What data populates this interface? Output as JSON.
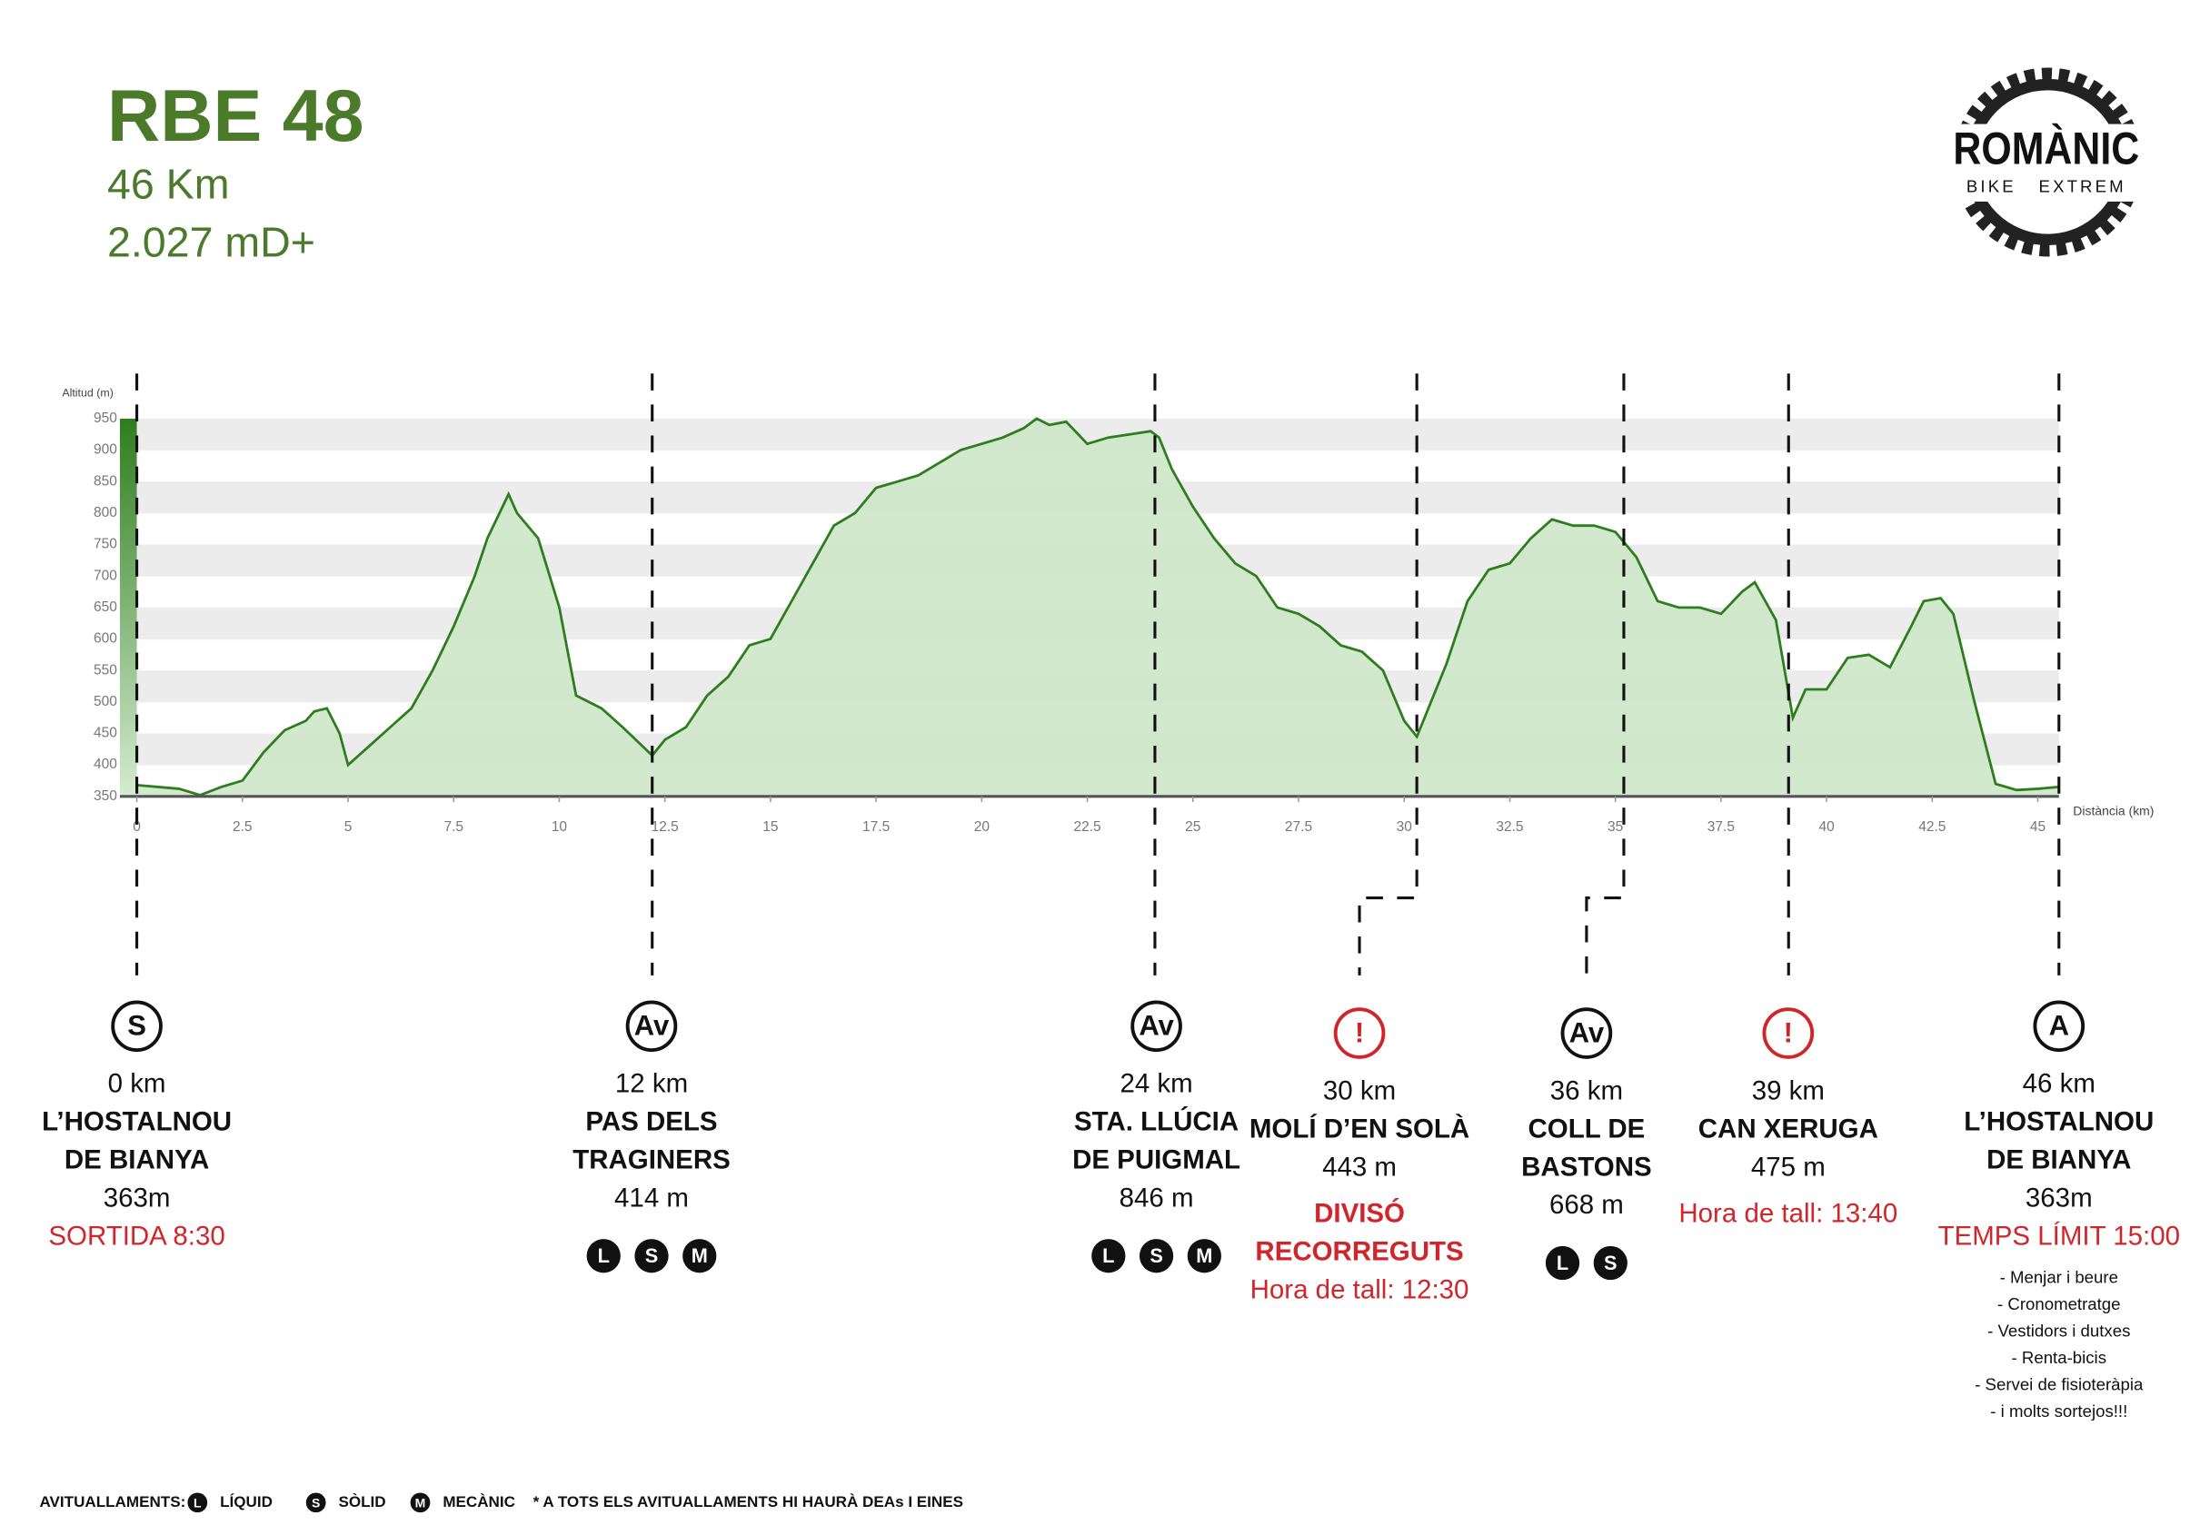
{
  "header": {
    "title": "RBE 48",
    "distance": "46 Km",
    "elevation": "2.027 mD+"
  },
  "logo": {
    "name": "ROMÀNIC",
    "subtitle": "BIKE   EXTREM"
  },
  "chart_data": {
    "type": "area",
    "y_label": "Altitud (m)",
    "x_label": "Distància (km)",
    "color": "#2e7d1e",
    "fill": "#cde7c9",
    "x": [
      0,
      1,
      1.5,
      2,
      2.5,
      3,
      3.5,
      4,
      4.2,
      4.5,
      4.8,
      5,
      5.5,
      6,
      6.5,
      7,
      7.5,
      8,
      8.3,
      8.8,
      9,
      9.5,
      10,
      10.4,
      11,
      11.5,
      12.2,
      12.5,
      13,
      13.5,
      14,
      14.5,
      15,
      15.5,
      16,
      16.5,
      17,
      17.5,
      18,
      18.5,
      19,
      19.5,
      20,
      20.5,
      21,
      21.3,
      21.6,
      22,
      22.5,
      23,
      23.5,
      24,
      24.2,
      24.5,
      25,
      25.5,
      26,
      26.5,
      27,
      27.5,
      28,
      28.5,
      29,
      29.5,
      30,
      30.3,
      31,
      31.5,
      32,
      32.5,
      33,
      33.5,
      34,
      34.5,
      35,
      35.5,
      36,
      36.5,
      37,
      37.5,
      38,
      38.3,
      38.8,
      39.2,
      39.5,
      40,
      40.5,
      41,
      41.5,
      42,
      42.3,
      42.7,
      43,
      43.5,
      44,
      44.5,
      45,
      45.5
    ],
    "values": [
      368,
      362,
      352,
      365,
      375,
      420,
      455,
      470,
      485,
      490,
      450,
      400,
      430,
      460,
      490,
      550,
      620,
      700,
      760,
      830,
      800,
      760,
      650,
      510,
      490,
      460,
      415,
      440,
      460,
      510,
      540,
      590,
      600,
      660,
      720,
      780,
      800,
      840,
      850,
      860,
      880,
      900,
      910,
      920,
      935,
      950,
      940,
      945,
      910,
      920,
      925,
      930,
      920,
      870,
      810,
      760,
      720,
      700,
      650,
      640,
      620,
      590,
      580,
      550,
      470,
      445,
      560,
      660,
      710,
      720,
      760,
      790,
      780,
      780,
      770,
      730,
      660,
      650,
      650,
      640,
      675,
      690,
      630,
      475,
      520,
      520,
      570,
      575,
      555,
      620,
      660,
      665,
      640,
      500,
      370,
      360,
      362,
      365
    ],
    "xlim": [
      0,
      45.5
    ],
    "ylim": [
      350,
      950
    ],
    "xticks": [
      0,
      2.5,
      5,
      7.5,
      10,
      12.5,
      15,
      17.5,
      20,
      22.5,
      25,
      27.5,
      30,
      32.5,
      35,
      37.5,
      40,
      42.5,
      45
    ],
    "yticks": [
      350,
      400,
      450,
      500,
      550,
      600,
      650,
      700,
      750,
      800,
      850,
      900,
      950
    ],
    "markers": [
      0,
      12.2,
      24.1,
      30.3,
      35.2,
      39.1,
      45.5
    ],
    "grid": true
  },
  "checkpoints": [
    {
      "icon": "S",
      "km": "0 km",
      "name": [
        "L’HOSTALNOU",
        "DE BIANYA"
      ],
      "altitude": "363m",
      "note": [
        "SORTIDA 8:30"
      ]
    },
    {
      "icon": "Av",
      "km": "12 km",
      "name": [
        "PAS DELS",
        "TRAGINERS"
      ],
      "altitude": "414 m",
      "services": [
        "L",
        "S",
        "M"
      ]
    },
    {
      "icon": "Av",
      "km": "24 km",
      "name": [
        "STA. LLÚCIA",
        "DE PUIGMAL"
      ],
      "altitude": "846 m",
      "services": [
        "L",
        "S",
        "M"
      ]
    },
    {
      "icon": "!",
      "icon_color": "#d0262b",
      "km": "30 km",
      "name": [
        "MOLÍ D’EN SOLÀ"
      ],
      "altitude": "443 m",
      "note_bold": [
        "DIVISÓ",
        "RECORREGUTS"
      ],
      "note": [
        "Hora de tall: 12:30"
      ]
    },
    {
      "icon": "Av",
      "km": "36 km",
      "name": [
        "COLL DE",
        "BASTONS"
      ],
      "altitude": "668 m",
      "services": [
        "L",
        "S"
      ]
    },
    {
      "icon": "!",
      "icon_color": "#d0262b",
      "km": "39 km",
      "name": [
        "CAN XERUGA"
      ],
      "altitude": "475 m",
      "note": [
        "Hora de tall: 13:40"
      ]
    },
    {
      "icon": "A",
      "km": "46 km",
      "name": [
        "L’HOSTALNOU",
        "DE BIANYA"
      ],
      "altitude": "363m",
      "note": [
        "TEMPS LÍMIT 15:00"
      ],
      "extras": [
        "- Menjar i beure",
        "- Cronometratge",
        "- Vestidors i dutxes",
        "- Renta-bicis",
        "- Servei de fisioteràpia",
        "- i molts sortejos!!!"
      ]
    }
  ],
  "legend": {
    "title": "AVITUALLAMENTS:",
    "items": [
      {
        "key": "L",
        "label": "LÍQUID"
      },
      {
        "key": "S",
        "label": "SÒLID"
      },
      {
        "key": "M",
        "label": "MECÀNIC"
      }
    ],
    "note": "* A TOTS ELS AVITUALLAMENTS HI HAURÀ DEAs I EINES"
  }
}
